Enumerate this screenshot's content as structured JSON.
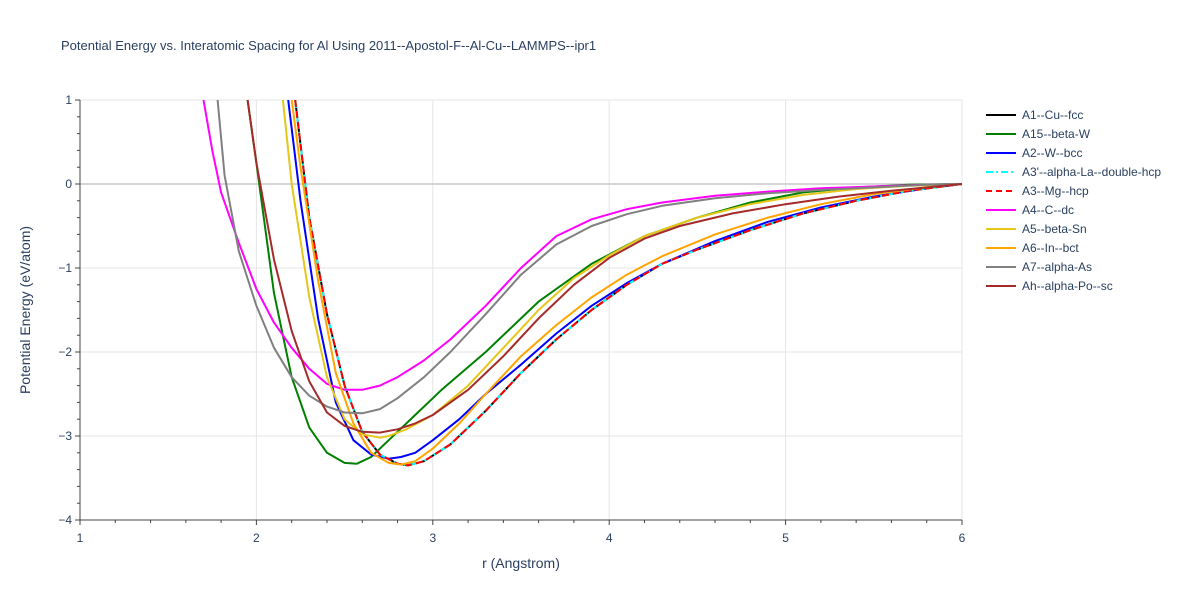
{
  "chart_data": {
    "type": "line",
    "title": "Potential Energy vs. Interatomic Spacing for Al Using 2011--Apostol-F--Al-Cu--LAMMPS--ipr1",
    "xlabel": "r (Angstrom)",
    "ylabel": "Potential Energy (eV/atom)",
    "xlim": [
      1,
      6
    ],
    "ylim": [
      -4,
      1
    ],
    "xticks": [
      1,
      2,
      3,
      4,
      5,
      6
    ],
    "yticks": [
      -4,
      -3,
      -2,
      -1,
      0,
      1
    ],
    "ytick_labels": [
      "−4",
      "−3",
      "−2",
      "−1",
      "0",
      "1"
    ],
    "grid": true,
    "legend_position": "right",
    "series": [
      {
        "name": "A1--Cu--fcc",
        "color": "#000000",
        "dash": "solid",
        "x": [
          2.22,
          2.3,
          2.4,
          2.5,
          2.6,
          2.7,
          2.8,
          2.86,
          2.95,
          3.1,
          3.3,
          3.5,
          3.7,
          3.9,
          4.1,
          4.3,
          4.5,
          4.8,
          5.1,
          5.4,
          5.7,
          6.0
        ],
        "y": [
          1.0,
          -0.4,
          -1.55,
          -2.4,
          -2.95,
          -3.22,
          -3.33,
          -3.35,
          -3.3,
          -3.1,
          -2.7,
          -2.25,
          -1.85,
          -1.5,
          -1.2,
          -0.95,
          -0.78,
          -0.55,
          -0.35,
          -0.2,
          -0.08,
          0.0
        ]
      },
      {
        "name": "A15--beta-W",
        "color": "#008000",
        "dash": "solid",
        "x": [
          1.95,
          2.0,
          2.1,
          2.2,
          2.3,
          2.4,
          2.5,
          2.57,
          2.65,
          2.75,
          2.9,
          3.05,
          3.3,
          3.6,
          3.9,
          4.2,
          4.5,
          4.8,
          5.1,
          5.4,
          5.7,
          6.0
        ],
        "y": [
          1.0,
          0.25,
          -1.3,
          -2.3,
          -2.9,
          -3.2,
          -3.32,
          -3.33,
          -3.25,
          -3.05,
          -2.75,
          -2.45,
          -2.0,
          -1.4,
          -0.95,
          -0.62,
          -0.4,
          -0.22,
          -0.1,
          -0.04,
          -0.01,
          0.0
        ]
      },
      {
        "name": "A2--W--bcc",
        "color": "#0000ff",
        "dash": "solid",
        "x": [
          2.18,
          2.25,
          2.35,
          2.45,
          2.55,
          2.65,
          2.75,
          2.82,
          2.9,
          3.0,
          3.15,
          3.3,
          3.5,
          3.7,
          3.9,
          4.1,
          4.3,
          4.6,
          4.9,
          5.2,
          5.5,
          5.8,
          6.0
        ],
        "y": [
          1.0,
          -0.2,
          -1.6,
          -2.6,
          -3.05,
          -3.22,
          -3.27,
          -3.25,
          -3.2,
          -3.05,
          -2.8,
          -2.5,
          -2.15,
          -1.78,
          -1.45,
          -1.18,
          -0.95,
          -0.68,
          -0.45,
          -0.28,
          -0.15,
          -0.05,
          0.0
        ]
      },
      {
        "name": "A3'--alpha-La--double-hcp",
        "color": "#00ffff",
        "dash": "dashdot",
        "x": [
          2.22,
          2.3,
          2.4,
          2.5,
          2.6,
          2.7,
          2.8,
          2.86,
          2.95,
          3.1,
          3.3,
          3.5,
          3.7,
          3.9,
          4.1,
          4.3,
          4.5,
          4.8,
          5.1,
          5.4,
          5.7,
          6.0
        ],
        "y": [
          1.0,
          -0.4,
          -1.55,
          -2.4,
          -2.95,
          -3.22,
          -3.33,
          -3.35,
          -3.3,
          -3.1,
          -2.7,
          -2.25,
          -1.85,
          -1.5,
          -1.2,
          -0.95,
          -0.78,
          -0.55,
          -0.35,
          -0.2,
          -0.08,
          0.0
        ]
      },
      {
        "name": "A3--Mg--hcp",
        "color": "#ff0000",
        "dash": "dash",
        "x": [
          2.22,
          2.3,
          2.4,
          2.5,
          2.6,
          2.7,
          2.8,
          2.86,
          2.95,
          3.1,
          3.3,
          3.5,
          3.7,
          3.9,
          4.1,
          4.3,
          4.5,
          4.8,
          5.1,
          5.4,
          5.7,
          6.0
        ],
        "y": [
          1.0,
          -0.4,
          -1.55,
          -2.4,
          -2.95,
          -3.22,
          -3.33,
          -3.35,
          -3.3,
          -3.1,
          -2.7,
          -2.25,
          -1.85,
          -1.5,
          -1.2,
          -0.95,
          -0.78,
          -0.55,
          -0.35,
          -0.2,
          -0.08,
          0.0
        ]
      },
      {
        "name": "A4--C--dc",
        "color": "#ff00ff",
        "dash": "solid",
        "x": [
          1.7,
          1.75,
          1.8,
          1.9,
          2.0,
          2.1,
          2.2,
          2.3,
          2.4,
          2.5,
          2.6,
          2.7,
          2.8,
          2.95,
          3.1,
          3.3,
          3.5,
          3.7,
          3.9,
          4.1,
          4.3,
          4.6,
          4.9,
          5.2,
          5.5,
          5.8,
          6.0
        ],
        "y": [
          1.0,
          0.4,
          -0.1,
          -0.7,
          -1.25,
          -1.65,
          -1.95,
          -2.2,
          -2.38,
          -2.45,
          -2.45,
          -2.4,
          -2.3,
          -2.1,
          -1.85,
          -1.45,
          -1.0,
          -0.62,
          -0.42,
          -0.3,
          -0.22,
          -0.14,
          -0.09,
          -0.05,
          -0.03,
          -0.01,
          0.0
        ]
      },
      {
        "name": "A5--beta-Sn",
        "color": "#e6c619",
        "dash": "solid",
        "x": [
          2.15,
          2.2,
          2.3,
          2.4,
          2.5,
          2.6,
          2.7,
          2.75,
          2.85,
          3.0,
          3.2,
          3.4,
          3.6,
          3.8,
          4.0,
          4.2,
          4.5,
          4.8,
          5.1,
          5.4,
          5.7,
          6.0
        ],
        "y": [
          1.0,
          0.0,
          -1.35,
          -2.3,
          -2.8,
          -2.98,
          -3.02,
          -3.0,
          -2.92,
          -2.75,
          -2.4,
          -1.95,
          -1.5,
          -1.12,
          -0.85,
          -0.62,
          -0.4,
          -0.24,
          -0.13,
          -0.06,
          -0.02,
          0.0
        ]
      },
      {
        "name": "A6--In--bct",
        "color": "#ffa500",
        "dash": "solid",
        "x": [
          2.2,
          2.25,
          2.35,
          2.45,
          2.55,
          2.65,
          2.75,
          2.82,
          2.9,
          3.0,
          3.15,
          3.3,
          3.5,
          3.7,
          3.9,
          4.1,
          4.3,
          4.6,
          4.9,
          5.2,
          5.5,
          5.8,
          6.0
        ],
        "y": [
          1.0,
          0.2,
          -1.15,
          -2.25,
          -2.85,
          -3.2,
          -3.32,
          -3.34,
          -3.3,
          -3.15,
          -2.85,
          -2.5,
          -2.05,
          -1.68,
          -1.35,
          -1.08,
          -0.86,
          -0.6,
          -0.4,
          -0.24,
          -0.12,
          -0.04,
          0.0
        ]
      },
      {
        "name": "A7--alpha-As",
        "color": "#808080",
        "dash": "solid",
        "x": [
          1.78,
          1.82,
          1.9,
          2.0,
          2.1,
          2.2,
          2.3,
          2.4,
          2.5,
          2.6,
          2.7,
          2.8,
          2.95,
          3.1,
          3.3,
          3.5,
          3.7,
          3.9,
          4.1,
          4.3,
          4.6,
          4.9,
          5.2,
          5.5,
          5.8,
          6.0
        ],
        "y": [
          1.0,
          0.1,
          -0.8,
          -1.45,
          -1.95,
          -2.3,
          -2.52,
          -2.65,
          -2.72,
          -2.73,
          -2.68,
          -2.55,
          -2.3,
          -2.0,
          -1.55,
          -1.08,
          -0.72,
          -0.5,
          -0.36,
          -0.26,
          -0.17,
          -0.11,
          -0.07,
          -0.04,
          -0.01,
          0.0
        ]
      },
      {
        "name": "Ah--alpha-Po--sc",
        "color": "#a52a2a",
        "dash": "solid",
        "x": [
          1.95,
          2.0,
          2.1,
          2.2,
          2.3,
          2.4,
          2.5,
          2.6,
          2.7,
          2.8,
          2.9,
          3.0,
          3.2,
          3.4,
          3.6,
          3.8,
          4.0,
          4.2,
          4.4,
          4.7,
          5.0,
          5.3,
          5.6,
          5.9,
          6.0
        ],
        "y": [
          1.0,
          0.25,
          -0.9,
          -1.75,
          -2.35,
          -2.72,
          -2.88,
          -2.95,
          -2.96,
          -2.92,
          -2.85,
          -2.75,
          -2.45,
          -2.05,
          -1.6,
          -1.2,
          -0.88,
          -0.65,
          -0.5,
          -0.35,
          -0.24,
          -0.15,
          -0.08,
          -0.02,
          0.0
        ]
      }
    ]
  }
}
